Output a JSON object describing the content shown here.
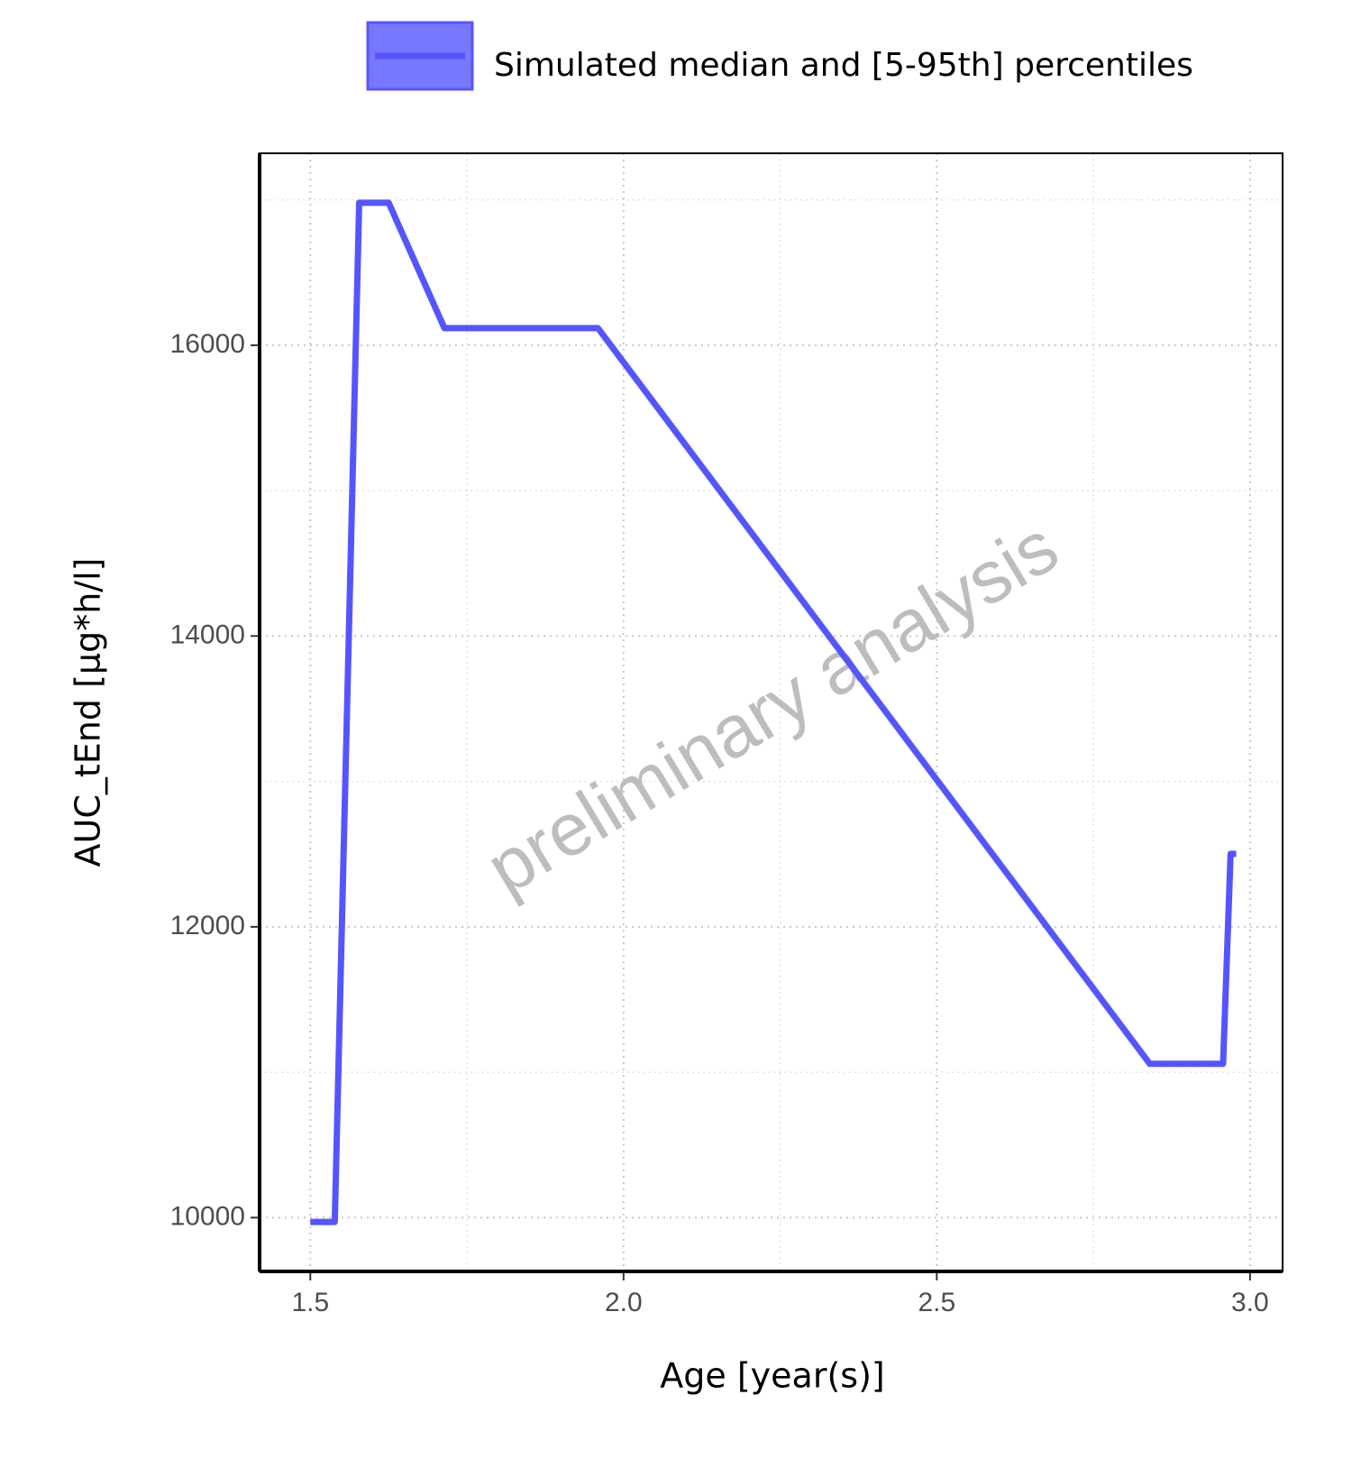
{
  "chart_data": {
    "type": "line",
    "x_label": "Age [year(s)]",
    "y_label": "AUC_tEnd [µg*h/l]",
    "watermark": "preliminary analysis",
    "legend_position": "top",
    "series": [
      {
        "name": "Simulated median and [5-95th] percentiles",
        "color": "#5555ff",
        "x": [
          1.5,
          1.539,
          1.578,
          1.625,
          1.714,
          1.959,
          2.84,
          2.957,
          2.969,
          2.978
        ],
        "values": [
          9970,
          9970,
          16980,
          16980,
          16118,
          16118,
          11058,
          11058,
          12502,
          12502
        ]
      }
    ],
    "xlim": [
      1.419,
      3.052
    ],
    "ylim": [
      9630,
      17320
    ],
    "xticks": [
      {
        "value": 1.5,
        "label": "1.5"
      },
      {
        "value": 2,
        "label": "2.0"
      },
      {
        "value": 2.5,
        "label": "2.5"
      },
      {
        "value": 3,
        "label": "3.0"
      }
    ],
    "yticks": [
      10000,
      12000,
      14000,
      16000
    ],
    "minor_xticks": [
      1.75,
      2.25,
      2.75
    ],
    "minor_yticks": [
      11000,
      13000,
      15000,
      17000
    ],
    "grid": true
  }
}
